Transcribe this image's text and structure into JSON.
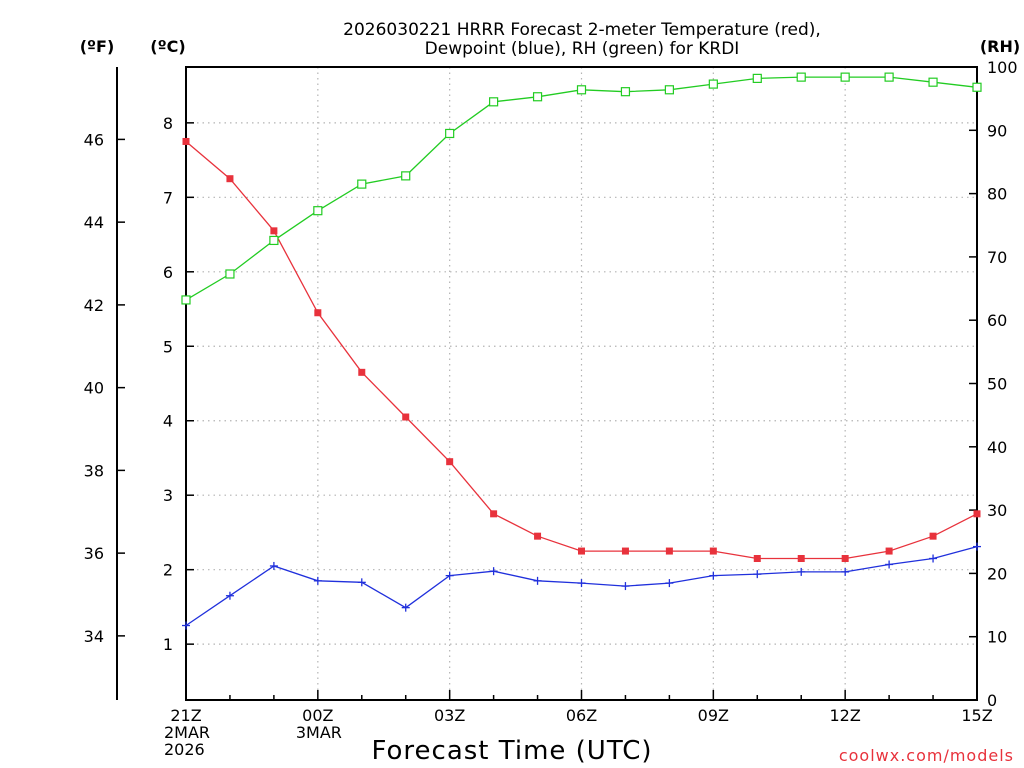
{
  "chart_data": {
    "type": "line",
    "title_line1": "2026030221 HRRR Forecast 2-meter Temperature (red),",
    "title_line2": "Dewpoint (blue), RH (green) for KRDI",
    "station": "KRDI",
    "model": "HRRR",
    "init": "2026030221",
    "units": {
      "fahrenheit": "(ºF)",
      "celsius": "(ºC)",
      "rh": "(RH)"
    },
    "xlabel": "Forecast Time (UTC)",
    "credit": "coolwx.com/models",
    "x_hours": [
      0,
      1,
      2,
      3,
      4,
      5,
      6,
      7,
      8,
      9,
      10,
      11,
      12,
      13,
      14,
      15,
      16,
      17,
      18
    ],
    "x_ticks": [
      {
        "hour": 0,
        "lines": [
          "21Z",
          "2MAR",
          "2026"
        ]
      },
      {
        "hour": 3,
        "lines": [
          "00Z",
          "3MAR"
        ]
      },
      {
        "hour": 6,
        "lines": [
          "03Z"
        ]
      },
      {
        "hour": 9,
        "lines": [
          "06Z"
        ]
      },
      {
        "hour": 12,
        "lines": [
          "09Z"
        ]
      },
      {
        "hour": 15,
        "lines": [
          "12Z"
        ]
      },
      {
        "hour": 18,
        "lines": [
          "15Z"
        ]
      }
    ],
    "ylim_c": [
      0.25,
      8.75
    ],
    "yticks_c": [
      "1",
      "2",
      "3",
      "4",
      "5",
      "6",
      "7",
      "8"
    ],
    "yticks_f": [
      "34",
      "36",
      "38",
      "40",
      "42",
      "44",
      "46"
    ],
    "ylim_rh": [
      0,
      100
    ],
    "yticks_rh": [
      "0",
      "10",
      "20",
      "30",
      "40",
      "50",
      "60",
      "70",
      "80",
      "90",
      "100"
    ],
    "series": [
      {
        "name": "Temperature",
        "axis": "celsius",
        "color": "#e8323c",
        "marker": "filled-square",
        "values": [
          7.75,
          7.25,
          6.55,
          5.45,
          4.65,
          4.05,
          3.45,
          2.75,
          2.45,
          2.25,
          2.25,
          2.25,
          2.25,
          2.15,
          2.15,
          2.15,
          2.25,
          2.45,
          2.75
        ]
      },
      {
        "name": "Dewpoint",
        "axis": "celsius",
        "color": "#2030dc",
        "marker": "plus",
        "values": [
          1.25,
          1.65,
          2.05,
          1.85,
          1.83,
          1.49,
          1.92,
          1.98,
          1.85,
          1.82,
          1.78,
          1.82,
          1.92,
          1.94,
          1.97,
          1.97,
          2.07,
          2.15,
          2.31
        ]
      },
      {
        "name": "RH",
        "axis": "rh",
        "color": "#22cc22",
        "marker": "open-square",
        "values": [
          63.2,
          67.3,
          72.6,
          77.3,
          81.5,
          82.8,
          89.5,
          94.5,
          95.3,
          96.4,
          96.1,
          96.4,
          97.3,
          98.2,
          98.4,
          98.4,
          98.4,
          97.6,
          96.8
        ]
      }
    ]
  }
}
